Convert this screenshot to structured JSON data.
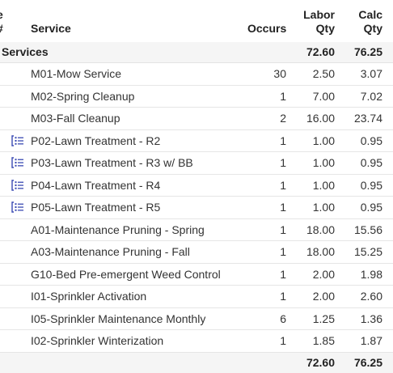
{
  "header": {
    "cut_line1": "e",
    "cut_line2": "#",
    "service": "Service",
    "occurs": "Occurs",
    "labor_line1": "Labor",
    "labor_line2": "Qty",
    "calc_line1": "Calc",
    "calc_line2": "Qty"
  },
  "group": {
    "name": "Services",
    "labor_qty": "72.60",
    "calc_qty": "76.25"
  },
  "rows": [
    {
      "icon": "",
      "service": "M01-Mow Service",
      "occurs": "30",
      "labor_qty": "2.50",
      "calc_qty": "3.07"
    },
    {
      "icon": "",
      "service": "M02-Spring Cleanup",
      "occurs": "1",
      "labor_qty": "7.00",
      "calc_qty": "7.02"
    },
    {
      "icon": "",
      "service": "M03-Fall Cleanup",
      "occurs": "2",
      "labor_qty": "16.00",
      "calc_qty": "23.74"
    },
    {
      "icon": "list-icon",
      "service": "P02-Lawn Treatment - R2",
      "occurs": "1",
      "labor_qty": "1.00",
      "calc_qty": "0.95"
    },
    {
      "icon": "list-icon",
      "service": "P03-Lawn Treatment - R3 w/ BB",
      "occurs": "1",
      "labor_qty": "1.00",
      "calc_qty": "0.95"
    },
    {
      "icon": "list-icon",
      "service": "P04-Lawn Treatment - R4",
      "occurs": "1",
      "labor_qty": "1.00",
      "calc_qty": "0.95"
    },
    {
      "icon": "list-icon",
      "service": "P05-Lawn Treatment - R5",
      "occurs": "1",
      "labor_qty": "1.00",
      "calc_qty": "0.95"
    },
    {
      "icon": "",
      "service": "A01-Maintenance Pruning - Spring",
      "occurs": "1",
      "labor_qty": "18.00",
      "calc_qty": "15.56"
    },
    {
      "icon": "",
      "service": "A03-Maintenance Pruning - Fall",
      "occurs": "1",
      "labor_qty": "18.00",
      "calc_qty": "15.25"
    },
    {
      "icon": "",
      "service": "G10-Bed Pre-emergent Weed Control",
      "occurs": "1",
      "labor_qty": "2.00",
      "calc_qty": "1.98"
    },
    {
      "icon": "",
      "service": "I01-Sprinkler Activation",
      "occurs": "1",
      "labor_qty": "2.00",
      "calc_qty": "2.60"
    },
    {
      "icon": "",
      "service": "I05-Sprinkler Maintenance Monthly",
      "occurs": "6",
      "labor_qty": "1.25",
      "calc_qty": "1.36"
    },
    {
      "icon": "",
      "service": "I02-Sprinkler Winterization",
      "occurs": "1",
      "labor_qty": "1.85",
      "calc_qty": "1.87"
    }
  ],
  "footer": {
    "labor_qty": "72.60",
    "calc_qty": "76.25"
  },
  "colors": {
    "icon": "#3b4bb3",
    "group_bg": "#f5f5f5",
    "row_border": "#e6e6e6"
  }
}
